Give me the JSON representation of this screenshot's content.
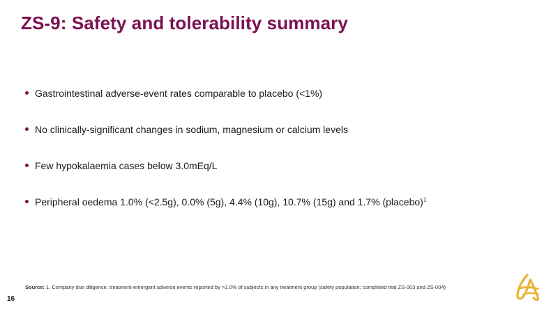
{
  "slide": {
    "title": "ZS-9: Safety and tolerability summary",
    "page_number": "16",
    "accent_color": "#7b1150",
    "logo_color": "#e8b43c"
  },
  "bullets": [
    {
      "text": "Gastrointestinal adverse-event rates comparable to placebo (<1%)",
      "superscript": ""
    },
    {
      "text": "No clinically-significant changes in sodium, magnesium or calcium levels",
      "superscript": ""
    },
    {
      "text": "Few hypokalaemia cases below 3.0mEq/L",
      "superscript": ""
    },
    {
      "text": "Peripheral oedema 1.0% (<2.5g), 0.0% (5g), 4.4% (10g), 10.7% (15g) and 1.7% (placebo)",
      "superscript": "1"
    }
  ],
  "footer": {
    "source_label": "Source:",
    "source_text": " 1. Company due diligence. treatment-emergent adverse events reported by >2.0% of subjects in any treatment group (safety population; completed trial ZS-003 and ZS-004)"
  },
  "icons": {
    "logo": "astrazeneca-logo-icon"
  }
}
